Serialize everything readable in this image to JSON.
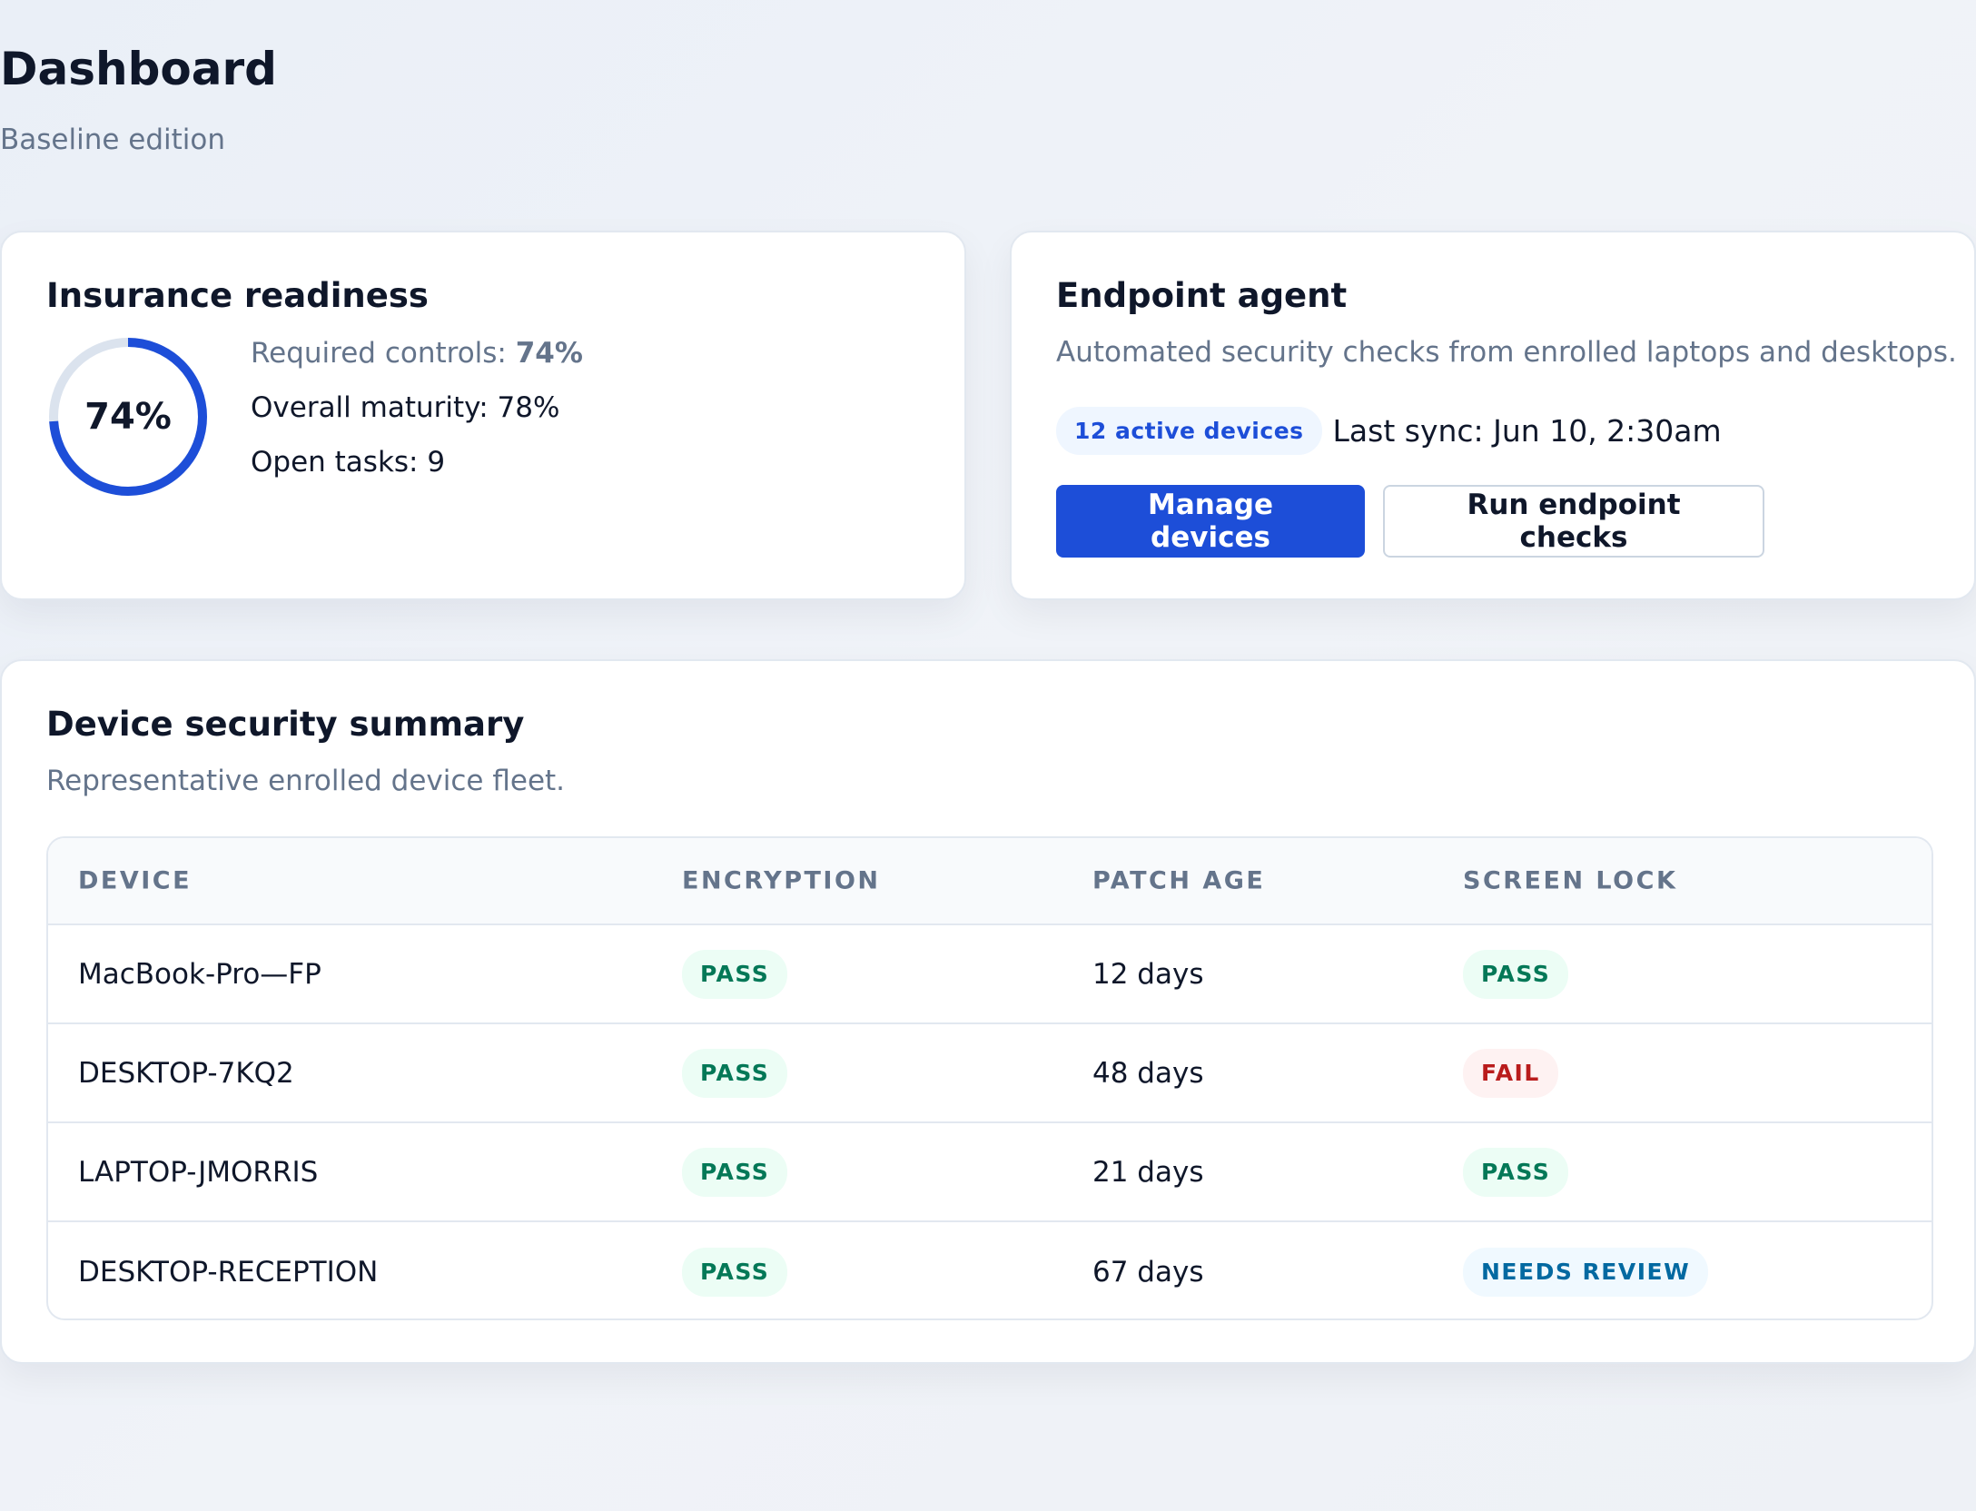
{
  "page": {
    "title": "Dashboard",
    "subtitle": "Baseline edition"
  },
  "insurance": {
    "title": "Insurance readiness",
    "ring_label": "74%",
    "ring_percent": 74,
    "required_label": "Required controls: ",
    "required_value": "74%",
    "maturity": "Overall maturity: 78%",
    "open_tasks": "Open tasks: 9",
    "colors": {
      "ring": "#1d4ed8",
      "track": "#dbe3ee"
    }
  },
  "endpoint": {
    "title": "Endpoint agent",
    "description": "Automated security checks from enrolled laptops and desktops.",
    "devices_badge": "12 active devices",
    "last_sync": "Last sync: Jun 10, 2:30am",
    "manage_button": "Manage devices",
    "run_button": "Run endpoint checks"
  },
  "devices": {
    "title": "Device security summary",
    "description": "Representative enrolled device fleet.",
    "columns": [
      "DEVICE",
      "ENCRYPTION",
      "PATCH AGE",
      "SCREEN LOCK"
    ],
    "rows": [
      {
        "device": "MacBook-Pro—FP",
        "encryption": "PASS",
        "patch_age": "12 days",
        "screen_lock": "PASS",
        "screen_lock_status": "pass"
      },
      {
        "device": "DESKTOP-7KQ2",
        "encryption": "PASS",
        "patch_age": "48 days",
        "screen_lock": "FAIL",
        "screen_lock_status": "fail"
      },
      {
        "device": "LAPTOP-JMORRIS",
        "encryption": "PASS",
        "patch_age": "21 days",
        "screen_lock": "PASS",
        "screen_lock_status": "pass"
      },
      {
        "device": "DESKTOP-RECEPTION",
        "encryption": "PASS",
        "patch_age": "67 days",
        "screen_lock": "NEEDS REVIEW",
        "screen_lock_status": "review"
      }
    ]
  }
}
